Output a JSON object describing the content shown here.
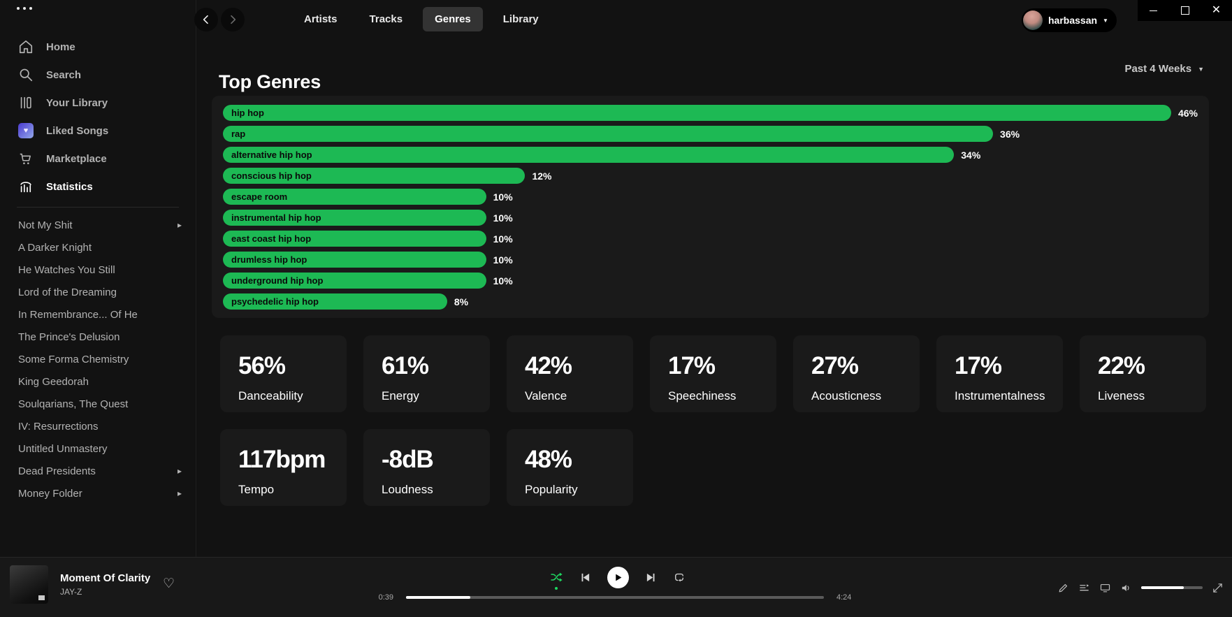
{
  "topbar": {
    "tabs": [
      {
        "label": "Artists",
        "active": false
      },
      {
        "label": "Tracks",
        "active": false
      },
      {
        "label": "Genres",
        "active": true
      },
      {
        "label": "Library",
        "active": false
      }
    ],
    "user_name": "harbassan",
    "window_controls": [
      "minimize",
      "maximize",
      "close"
    ]
  },
  "sidebar": {
    "nav_items": [
      {
        "label": "Home",
        "icon": "home-icon",
        "active": false
      },
      {
        "label": "Search",
        "icon": "search-icon",
        "active": false
      },
      {
        "label": "Your Library",
        "icon": "library-icon",
        "active": false
      },
      {
        "label": "Liked Songs",
        "icon": "liked-songs-icon",
        "active": false
      },
      {
        "label": "Marketplace",
        "icon": "cart-icon",
        "active": false
      },
      {
        "label": "Statistics",
        "icon": "stats-icon",
        "active": true
      }
    ],
    "playlists": [
      {
        "label": "Not My Shit",
        "folder": true
      },
      {
        "label": "A Darker Knight",
        "folder": false
      },
      {
        "label": "He Watches You Still",
        "folder": false
      },
      {
        "label": "Lord of the Dreaming",
        "folder": false
      },
      {
        "label": "In Remembrance... Of He",
        "folder": false
      },
      {
        "label": "The Prince's Delusion",
        "folder": false
      },
      {
        "label": "Some Forma Chemistry",
        "folder": false
      },
      {
        "label": "King Geedorah",
        "folder": false
      },
      {
        "label": "Soulqarians, The Quest",
        "folder": false
      },
      {
        "label": "IV: Resurrections",
        "folder": false
      },
      {
        "label": "Untitled Unmastery",
        "folder": false
      },
      {
        "label": "Dead Presidents",
        "folder": true
      },
      {
        "label": "Money Folder",
        "folder": true
      }
    ]
  },
  "page": {
    "title": "Top Genres",
    "time_range": "Past 4 Weeks"
  },
  "chart_data": {
    "type": "bar",
    "orientation": "horizontal",
    "title": "Top Genres",
    "unit": "percent",
    "categories": [
      "hip hop",
      "rap",
      "alternative hip hop",
      "conscious hip hop",
      "escape room",
      "instrumental hip hop",
      "east coast hip hop",
      "drumless hip hop",
      "underground hip hop",
      "psychedelic hip hop"
    ],
    "values": [
      46,
      36,
      34,
      12,
      10,
      10,
      10,
      10,
      10,
      8
    ],
    "value_labels": [
      "46%",
      "36%",
      "34%",
      "12%",
      "10%",
      "10%",
      "10%",
      "10%",
      "10%",
      "8%"
    ],
    "bar_color": "#1db954",
    "bar_label_color": "#0a0a0a",
    "grid": false,
    "legend": false
  },
  "stat_cards": [
    {
      "value": "56%",
      "label": "Danceability"
    },
    {
      "value": "61%",
      "label": "Energy"
    },
    {
      "value": "42%",
      "label": "Valence"
    },
    {
      "value": "17%",
      "label": "Speechiness"
    },
    {
      "value": "27%",
      "label": "Acousticness"
    },
    {
      "value": "17%",
      "label": "Instrumentalness"
    },
    {
      "value": "22%",
      "label": "Liveness"
    },
    {
      "value": "117bpm",
      "label": "Tempo"
    },
    {
      "value": "-8dB",
      "label": "Loudness"
    },
    {
      "value": "48%",
      "label": "Popularity"
    }
  ],
  "player": {
    "track_title": "Moment Of Clarity",
    "artist": "JAY-Z",
    "elapsed": "0:39",
    "duration": "4:24",
    "progress_pct": 15.4,
    "volume_pct": 69,
    "shuffle_active": true,
    "accent_green": "#1ed760"
  }
}
